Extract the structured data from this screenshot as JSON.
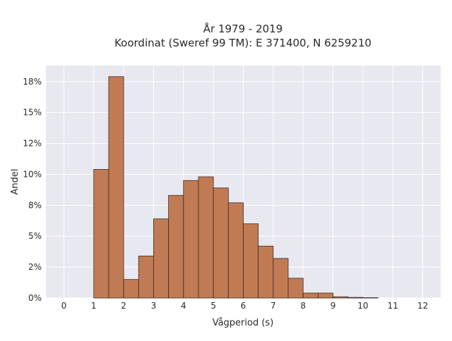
{
  "chart_data": {
    "type": "bar",
    "title_lines": [
      "År 1979 - 2019",
      "Koordinat (Sweref 99 TM): E 371400, N 6259210"
    ],
    "xlabel": "Vågperiod (s)",
    "ylabel": "Andel",
    "xlim": [
      -0.6,
      12.6
    ],
    "ylim": [
      0,
      18.8
    ],
    "x_ticks": [
      0,
      1,
      2,
      3,
      4,
      5,
      6,
      7,
      8,
      9,
      10,
      11,
      12
    ],
    "x_tick_labels": [
      "0",
      "1",
      "2",
      "3",
      "4",
      "5",
      "6",
      "7",
      "8",
      "9",
      "10",
      "11",
      "12"
    ],
    "y_ticks": [
      0,
      2.5,
      5,
      7.5,
      10,
      12.5,
      15,
      17.5
    ],
    "y_tick_labels": [
      "0%",
      "2%",
      "5%",
      "8%",
      "10%",
      "12%",
      "15%",
      "18%"
    ],
    "bin_width": 0.5,
    "bins": [
      {
        "x0": 1.0,
        "x1": 1.5,
        "value": 10.4
      },
      {
        "x0": 1.5,
        "x1": 2.0,
        "value": 17.9
      },
      {
        "x0": 2.0,
        "x1": 2.5,
        "value": 1.5
      },
      {
        "x0": 2.5,
        "x1": 3.0,
        "value": 3.4
      },
      {
        "x0": 3.0,
        "x1": 3.5,
        "value": 6.4
      },
      {
        "x0": 3.5,
        "x1": 4.0,
        "value": 8.3
      },
      {
        "x0": 4.0,
        "x1": 4.5,
        "value": 9.5
      },
      {
        "x0": 4.5,
        "x1": 5.0,
        "value": 9.8
      },
      {
        "x0": 5.0,
        "x1": 5.5,
        "value": 8.9
      },
      {
        "x0": 5.5,
        "x1": 6.0,
        "value": 7.7
      },
      {
        "x0": 6.0,
        "x1": 6.5,
        "value": 6.0
      },
      {
        "x0": 6.5,
        "x1": 7.0,
        "value": 4.2
      },
      {
        "x0": 7.0,
        "x1": 7.5,
        "value": 3.2
      },
      {
        "x0": 7.5,
        "x1": 8.0,
        "value": 1.6
      },
      {
        "x0": 8.0,
        "x1": 8.5,
        "value": 0.4
      },
      {
        "x0": 8.5,
        "x1": 9.0,
        "value": 0.4
      },
      {
        "x0": 9.0,
        "x1": 9.5,
        "value": 0.1
      },
      {
        "x0": 9.5,
        "x1": 10.0,
        "value": 0.05
      },
      {
        "x0": 10.0,
        "x1": 10.5,
        "value": 0.03
      }
    ],
    "grid": true,
    "legend": "none",
    "colors": {
      "bar_fill": "#c17b54",
      "bar_edge": "#3b2a20",
      "plot_background": "#e8e8f0",
      "grid": "#ffffff"
    }
  }
}
